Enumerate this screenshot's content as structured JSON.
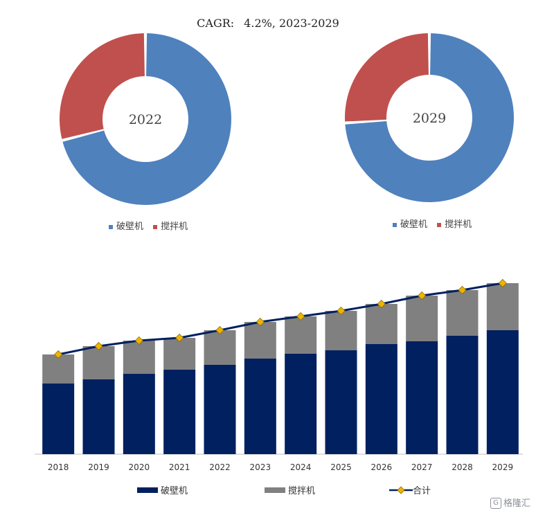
{
  "title": {
    "label": "CAGR:",
    "value": "4.2%, 2023-2029"
  },
  "colors": {
    "pobiji": "#4f81bd",
    "jiaobanji": "#c0504d",
    "bar_pobiji": "#002060",
    "bar_jiaobanji": "#808080",
    "total_line": "#002060",
    "total_marker": "#f0b400"
  },
  "pie_legend": {
    "item1": "破壁机",
    "item2": "搅拌机"
  },
  "bar_legend": {
    "item1": "破壁机",
    "item2": "搅拌机",
    "item3": "合计"
  },
  "watermark": {
    "icon": "G",
    "text": "格隆汇"
  },
  "chart_data": [
    {
      "type": "pie",
      "variant": "donut",
      "center_label": "2022",
      "categories": [
        "破壁机",
        "搅拌机"
      ],
      "values": [
        71,
        29
      ]
    },
    {
      "type": "pie",
      "variant": "donut",
      "center_label": "2029",
      "categories": [
        "破壁机",
        "搅拌机"
      ],
      "values": [
        74,
        26
      ]
    },
    {
      "type": "bar",
      "stacked": true,
      "categories": [
        "2018",
        "2019",
        "2020",
        "2021",
        "2022",
        "2023",
        "2024",
        "2025",
        "2026",
        "2027",
        "2028",
        "2029"
      ],
      "series": [
        {
          "name": "破壁机",
          "values": [
            102,
            108,
            116,
            122,
            129,
            138,
            145,
            150,
            159,
            163,
            171,
            179
          ]
        },
        {
          "name": "搅拌机",
          "values": [
            42,
            48,
            48,
            46,
            50,
            53,
            54,
            57,
            58,
            66,
            66,
            68
          ]
        },
        {
          "name": "合计",
          "type": "line",
          "values": [
            144,
            156,
            164,
            168,
            179,
            191,
            199,
            207,
            217,
            229,
            237,
            247
          ]
        }
      ],
      "ylim": [
        0,
        250
      ],
      "grid": false,
      "legend": "bottom"
    }
  ]
}
